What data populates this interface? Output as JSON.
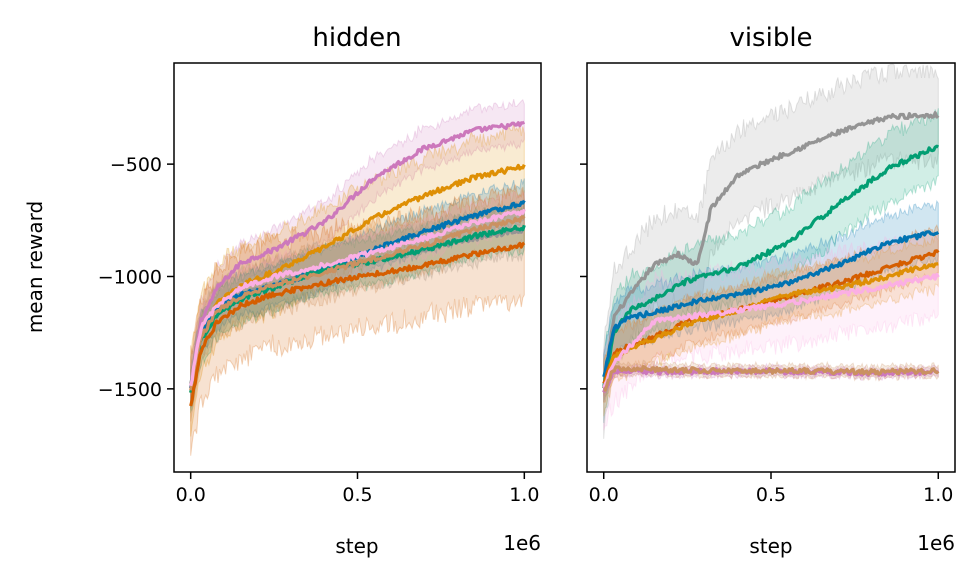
{
  "chart_data": [
    {
      "type": "line",
      "title": "hidden",
      "xlabel": "step",
      "ylabel": "mean reward",
      "x_offset_label": "1e6",
      "xlim": [
        -0.05,
        1.05
      ],
      "ylim": [
        -1870,
        -50
      ],
      "xticks": [
        0.0,
        0.5,
        1.0
      ],
      "xtick_labels": [
        "0.0",
        "0.5",
        "1.0"
      ],
      "yticks": [
        -500,
        -1000,
        -1500
      ],
      "ytick_labels": [
        "−500",
        "−1000",
        "−1500"
      ],
      "grid": false,
      "series": [
        {
          "color": "#cc78bc",
          "x": [
            0,
            0.03,
            0.08,
            0.15,
            0.25,
            0.4,
            0.55,
            0.7,
            0.85,
            1.0
          ],
          "y": [
            -1500,
            -1200,
            -1050,
            -940,
            -880,
            -760,
            -560,
            -430,
            -350,
            -320
          ],
          "band": 90
        },
        {
          "color": "#de8f05",
          "x": [
            0,
            0.03,
            0.08,
            0.15,
            0.25,
            0.4,
            0.55,
            0.7,
            0.85,
            1.0
          ],
          "y": [
            -1520,
            -1260,
            -1120,
            -1040,
            -980,
            -870,
            -740,
            -640,
            -560,
            -510
          ],
          "band": 170
        },
        {
          "color": "#949494",
          "x": [
            0,
            0.03,
            0.08,
            0.15,
            0.25,
            0.4,
            0.55,
            0.7,
            0.85,
            1.0
          ],
          "y": [
            -1480,
            -1250,
            -1150,
            -1080,
            -1040,
            -960,
            -930,
            -880,
            -830,
            -790
          ],
          "band": 110
        },
        {
          "color": "#0173b2",
          "x": [
            0,
            0.03,
            0.08,
            0.15,
            0.25,
            0.4,
            0.55,
            0.7,
            0.85,
            1.0
          ],
          "y": [
            -1500,
            -1250,
            -1140,
            -1080,
            -1040,
            -970,
            -880,
            -800,
            -730,
            -670
          ],
          "band": 90
        },
        {
          "color": "#029e73",
          "x": [
            0,
            0.03,
            0.08,
            0.15,
            0.25,
            0.4,
            0.55,
            0.7,
            0.85,
            1.0
          ],
          "y": [
            -1520,
            -1280,
            -1170,
            -1100,
            -1050,
            -970,
            -930,
            -880,
            -820,
            -780
          ],
          "band": 100
        },
        {
          "color": "#ca9161",
          "x": [
            0,
            0.03,
            0.08,
            0.15,
            0.25,
            0.4,
            0.55,
            0.7,
            0.85,
            1.0
          ],
          "y": [
            -1510,
            -1270,
            -1150,
            -1090,
            -1040,
            -980,
            -920,
            -860,
            -790,
            -740
          ],
          "band": 120
        },
        {
          "color": "#fbafe4",
          "x": [
            0,
            0.03,
            0.08,
            0.15,
            0.25,
            0.4,
            0.55,
            0.7,
            0.85,
            1.0
          ],
          "y": [
            -1490,
            -1230,
            -1130,
            -1050,
            -1000,
            -950,
            -890,
            -830,
            -760,
            -710
          ],
          "band": 80
        },
        {
          "color": "#d55e00",
          "x": [
            0,
            0.03,
            0.08,
            0.15,
            0.25,
            0.4,
            0.55,
            0.7,
            0.85,
            1.0
          ],
          "y": [
            -1580,
            -1330,
            -1200,
            -1130,
            -1080,
            -1030,
            -990,
            -950,
            -900,
            -860
          ],
          "band": 230
        }
      ]
    },
    {
      "type": "line",
      "title": "visible",
      "xlabel": "step",
      "ylabel": "",
      "x_offset_label": "1e6",
      "xlim": [
        -0.05,
        1.05
      ],
      "ylim": [
        -1870,
        -50
      ],
      "xticks": [
        0.0,
        0.5,
        1.0
      ],
      "xtick_labels": [
        "0.0",
        "0.5",
        "1.0"
      ],
      "yticks": [
        -500,
        -1000,
        -1500
      ],
      "ytick_labels": [
        "",
        "",
        ""
      ],
      "grid": false,
      "series": [
        {
          "color": "#949494",
          "x": [
            0,
            0.03,
            0.08,
            0.15,
            0.22,
            0.28,
            0.32,
            0.4,
            0.5,
            0.6,
            0.7,
            0.85,
            1.0
          ],
          "y": [
            -1500,
            -1180,
            -1080,
            -950,
            -900,
            -950,
            -700,
            -550,
            -480,
            -420,
            -360,
            -290,
            -280
          ],
          "band": 200
        },
        {
          "color": "#029e73",
          "x": [
            0,
            0.03,
            0.08,
            0.15,
            0.25,
            0.4,
            0.55,
            0.7,
            0.85,
            1.0
          ],
          "y": [
            -1500,
            -1250,
            -1150,
            -1100,
            -1020,
            -960,
            -850,
            -680,
            -520,
            -420
          ],
          "band": 150
        },
        {
          "color": "#0173b2",
          "x": [
            0,
            0.03,
            0.08,
            0.15,
            0.25,
            0.4,
            0.55,
            0.7,
            0.85,
            1.0
          ],
          "y": [
            -1450,
            -1230,
            -1180,
            -1160,
            -1120,
            -1080,
            -1030,
            -950,
            -850,
            -800
          ],
          "band": 120
        },
        {
          "color": "#d55e00",
          "x": [
            0,
            0.03,
            0.08,
            0.15,
            0.25,
            0.4,
            0.55,
            0.7,
            0.85,
            1.0
          ],
          "y": [
            -1480,
            -1340,
            -1310,
            -1270,
            -1200,
            -1150,
            -1090,
            -1030,
            -960,
            -890
          ],
          "band": 100
        },
        {
          "color": "#de8f05",
          "x": [
            0,
            0.03,
            0.08,
            0.15,
            0.25,
            0.4,
            0.55,
            0.7,
            0.85,
            1.0
          ],
          "y": [
            -1500,
            -1350,
            -1320,
            -1280,
            -1210,
            -1150,
            -1080,
            -1050,
            -1000,
            -940
          ],
          "band": 110
        },
        {
          "color": "#fbafe4",
          "x": [
            0,
            0.03,
            0.08,
            0.15,
            0.25,
            0.4,
            0.55,
            0.7,
            0.85,
            1.0
          ],
          "y": [
            -1500,
            -1380,
            -1310,
            -1200,
            -1180,
            -1150,
            -1120,
            -1080,
            -1040,
            -1000
          ],
          "band": 180
        },
        {
          "color": "#cc78bc",
          "x": [
            0,
            0.03,
            0.08,
            0.2,
            0.4,
            0.6,
            0.8,
            1.0
          ],
          "y": [
            -1520,
            -1420,
            -1420,
            -1425,
            -1420,
            -1425,
            -1430,
            -1425
          ],
          "band": 20
        },
        {
          "color": "#ca9161",
          "x": [
            0,
            0.03,
            0.08,
            0.2,
            0.4,
            0.6,
            0.8,
            1.0
          ],
          "y": [
            -1510,
            -1410,
            -1410,
            -1415,
            -1420,
            -1420,
            -1425,
            -1420
          ],
          "band": 25
        }
      ]
    }
  ]
}
